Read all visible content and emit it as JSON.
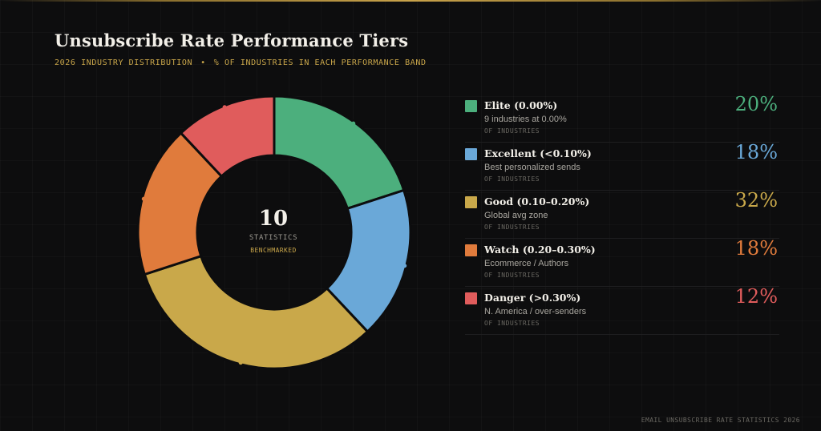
{
  "header": {
    "title": "Unsubscribe Rate Performance Tiers",
    "subtitle_left": "2026 INDUSTRY DISTRIBUTION",
    "subtitle_sep": "•",
    "subtitle_right": "% OF INDUSTRIES IN EACH PERFORMANCE BAND"
  },
  "center": {
    "value": "10",
    "label": "STATISTICS",
    "sub": "BENCHMARKED"
  },
  "chart_data": {
    "type": "pie",
    "title": "Unsubscribe Rate Performance Tiers",
    "subtitle": "2026 INDUSTRY DISTRIBUTION • % OF INDUSTRIES IN EACH PERFORMANCE BAND",
    "categories": [
      "Elite  (0.00%)",
      "Excellent (<0.10%)",
      "Good (0.10–0.20%)",
      "Watch (0.20–0.30%)",
      "Danger (>0.30%)"
    ],
    "values": [
      20,
      18,
      32,
      18,
      12
    ],
    "unit": "%",
    "legend_position": "right",
    "colors": [
      "#4caf7d",
      "#6aa8d8",
      "#c9a84a",
      "#e07b3c",
      "#e05c5c"
    ]
  },
  "legend": [
    {
      "name": "Elite  (0.00%)",
      "desc": "9 industries at 0.00%",
      "unit": "OF INDUSTRIES",
      "pct": "20%",
      "color": "#4caf7d"
    },
    {
      "name": "Excellent (<0.10%)",
      "desc": "Best personalized sends",
      "unit": "OF INDUSTRIES",
      "pct": "18%",
      "color": "#6aa8d8"
    },
    {
      "name": "Good (0.10–0.20%)",
      "desc": "Global avg zone",
      "unit": "OF INDUSTRIES",
      "pct": "32%",
      "color": "#c9a84a"
    },
    {
      "name": "Watch (0.20–0.30%)",
      "desc": "Ecommerce / Authors",
      "unit": "OF INDUSTRIES",
      "pct": "18%",
      "color": "#e07b3c"
    },
    {
      "name": "Danger (>0.30%)",
      "desc": "N. America / over-senders",
      "unit": "OF INDUSTRIES",
      "pct": "12%",
      "color": "#e05c5c"
    }
  ],
  "footer": {
    "text": "EMAIL UNSUBSCRIBE RATE STATISTICS 2026"
  }
}
